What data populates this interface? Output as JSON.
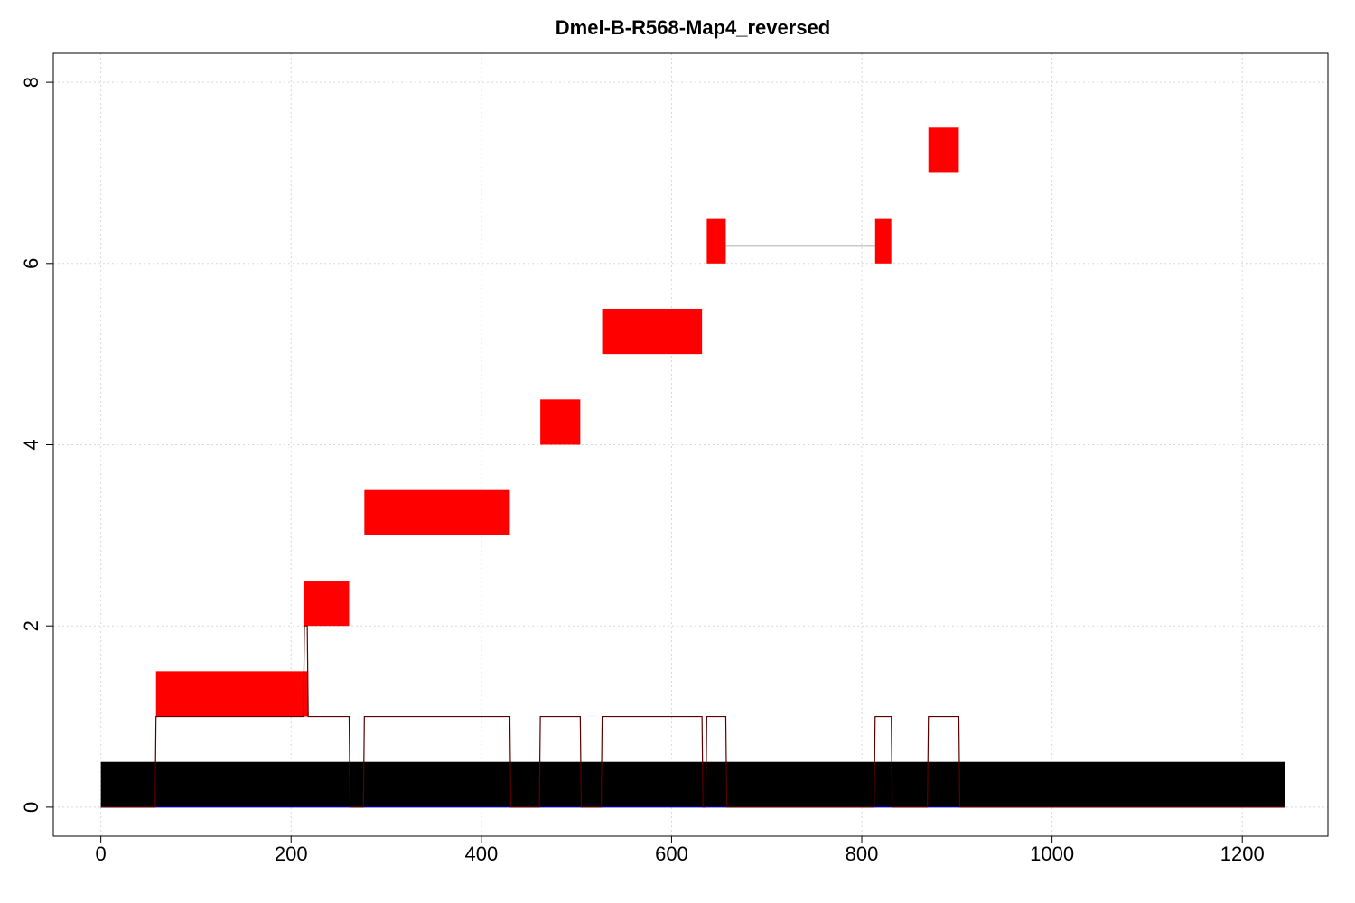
{
  "chart_data": {
    "type": "segment-map",
    "title": "Dmel-B-R568-Map4_reversed",
    "xlabel": "",
    "ylabel": "",
    "xlim": [
      -50,
      1290
    ],
    "ylim": [
      -0.32,
      8.32
    ],
    "x_ticks": [
      0,
      200,
      400,
      600,
      800,
      1000,
      1200
    ],
    "y_ticks": [
      0,
      2,
      4,
      6,
      8
    ],
    "grid": true,
    "colors": {
      "reference_bar": "#000000",
      "segment": "#ff0000",
      "coverage_line": "#5a0000",
      "connector": "#c8c8c8",
      "baseline": "#0000cc"
    },
    "reference_bar": {
      "x_start": 0,
      "x_end": 1245,
      "y_bottom": 0,
      "y_top": 0.5
    },
    "segments": [
      {
        "x_start": 58,
        "x_end": 218,
        "y_bottom": 1,
        "y_top": 1.5
      },
      {
        "x_start": 213,
        "x_end": 261,
        "y_bottom": 2,
        "y_top": 2.5
      },
      {
        "x_start": 277,
        "x_end": 430,
        "y_bottom": 3,
        "y_top": 3.5
      },
      {
        "x_start": 462,
        "x_end": 504,
        "y_bottom": 4,
        "y_top": 4.5
      },
      {
        "x_start": 527,
        "x_end": 632,
        "y_bottom": 5,
        "y_top": 5.5
      },
      {
        "x_start": 637,
        "x_end": 657,
        "y_bottom": 6,
        "y_top": 6.5
      },
      {
        "x_start": 814,
        "x_end": 831,
        "y_bottom": 6,
        "y_top": 6.5
      },
      {
        "x_start": 870,
        "x_end": 902,
        "y_bottom": 7,
        "y_top": 7.5
      }
    ],
    "connectors": [
      {
        "x_start": 657,
        "x_end": 814,
        "y": 6.2
      }
    ],
    "coverage": {
      "x": [
        0,
        57,
        58,
        213,
        214,
        217,
        218,
        261,
        262,
        276,
        277,
        430,
        431,
        461,
        462,
        504,
        505,
        526,
        527,
        632,
        633,
        636,
        637,
        657,
        658,
        813,
        814,
        831,
        832,
        869,
        870,
        902,
        903,
        1245
      ],
      "y": [
        0,
        0,
        1,
        1,
        2,
        2,
        1,
        1,
        0,
        0,
        1,
        1,
        0,
        0,
        1,
        1,
        0,
        0,
        1,
        1,
        0,
        0,
        1,
        1,
        0,
        0,
        1,
        1,
        0,
        0,
        1,
        1,
        0,
        0
      ]
    }
  }
}
